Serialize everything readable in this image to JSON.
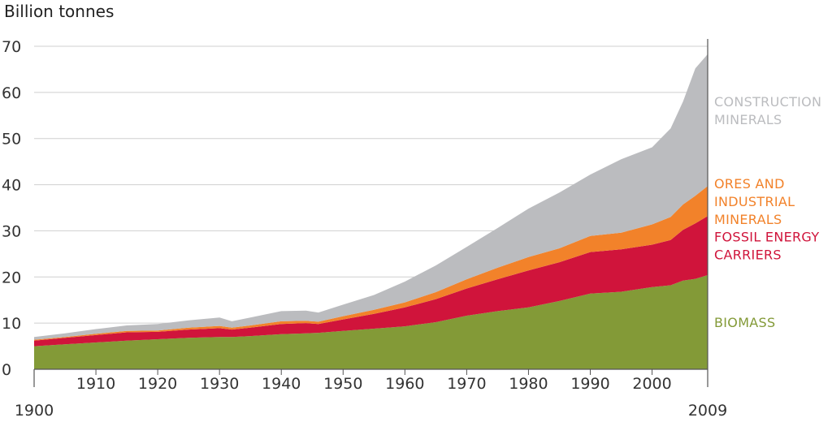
{
  "chart_data": {
    "type": "area",
    "stacked": true,
    "title": "",
    "xlabel": "",
    "ylabel": "Billion tonnes",
    "xlim": [
      1900,
      2009
    ],
    "ylim": [
      0,
      70
    ],
    "grid": true,
    "legend": "right, inline labels",
    "x_ticks": [
      "1900",
      "1910",
      "1920",
      "1930",
      "1940",
      "1950",
      "1960",
      "1970",
      "1980",
      "1990",
      "2000",
      "2009"
    ],
    "y_ticks": [
      "0",
      "10",
      "20",
      "30",
      "40",
      "50",
      "60",
      "70"
    ],
    "x": [
      1900,
      1905,
      1910,
      1915,
      1920,
      1925,
      1930,
      1932,
      1935,
      1940,
      1944,
      1946,
      1950,
      1955,
      1960,
      1965,
      1970,
      1975,
      1980,
      1985,
      1990,
      1995,
      2000,
      2003,
      2005,
      2007,
      2009
    ],
    "series": [
      {
        "name": "BIOMASS",
        "color": "#839a37",
        "label_lines": [
          "BIOMASS"
        ],
        "values": [
          5.0,
          5.4,
          5.8,
          6.2,
          6.5,
          6.8,
          7.0,
          7.0,
          7.2,
          7.6,
          7.8,
          7.9,
          8.3,
          8.8,
          9.3,
          10.2,
          11.6,
          12.6,
          13.4,
          14.8,
          16.4,
          16.8,
          17.8,
          18.2,
          19.2,
          19.6,
          20.4
        ]
      },
      {
        "name": "FOSSIL ENERGY CARRIERS",
        "color": "#d0143b",
        "label_lines": [
          "FOSSIL ENERGY",
          "CARRIERS"
        ],
        "values": [
          1.2,
          1.4,
          1.6,
          1.8,
          1.6,
          1.8,
          1.9,
          1.6,
          1.8,
          2.2,
          2.2,
          1.9,
          2.5,
          3.2,
          4.1,
          5.0,
          5.9,
          6.9,
          8.0,
          8.4,
          9.0,
          9.2,
          9.2,
          9.8,
          11.0,
          12.0,
          12.8
        ]
      },
      {
        "name": "ORES AND INDUSTRIAL MINERALS",
        "color": "#f2822a",
        "label_lines": [
          "ORES AND",
          "INDUSTRIAL",
          "MINERALS"
        ],
        "values": [
          0.2,
          0.2,
          0.3,
          0.3,
          0.3,
          0.4,
          0.5,
          0.4,
          0.5,
          0.6,
          0.5,
          0.5,
          0.7,
          0.9,
          1.1,
          1.5,
          2.0,
          2.5,
          2.9,
          3.0,
          3.5,
          3.6,
          4.4,
          5.0,
          5.5,
          6.0,
          6.5
        ]
      },
      {
        "name": "CONSTRUCTION MINERALS",
        "color": "#bbbcbf",
        "label_lines": [
          "CONSTRUCTION",
          "MINERALS"
        ],
        "values": [
          0.6,
          0.8,
          1.0,
          1.2,
          1.4,
          1.6,
          1.8,
          1.4,
          1.7,
          2.2,
          2.2,
          2.0,
          2.5,
          3.2,
          4.5,
          5.8,
          7.0,
          8.6,
          10.5,
          12.1,
          13.3,
          15.9,
          16.7,
          19.2,
          22.3,
          27.6,
          28.6
        ]
      }
    ]
  }
}
